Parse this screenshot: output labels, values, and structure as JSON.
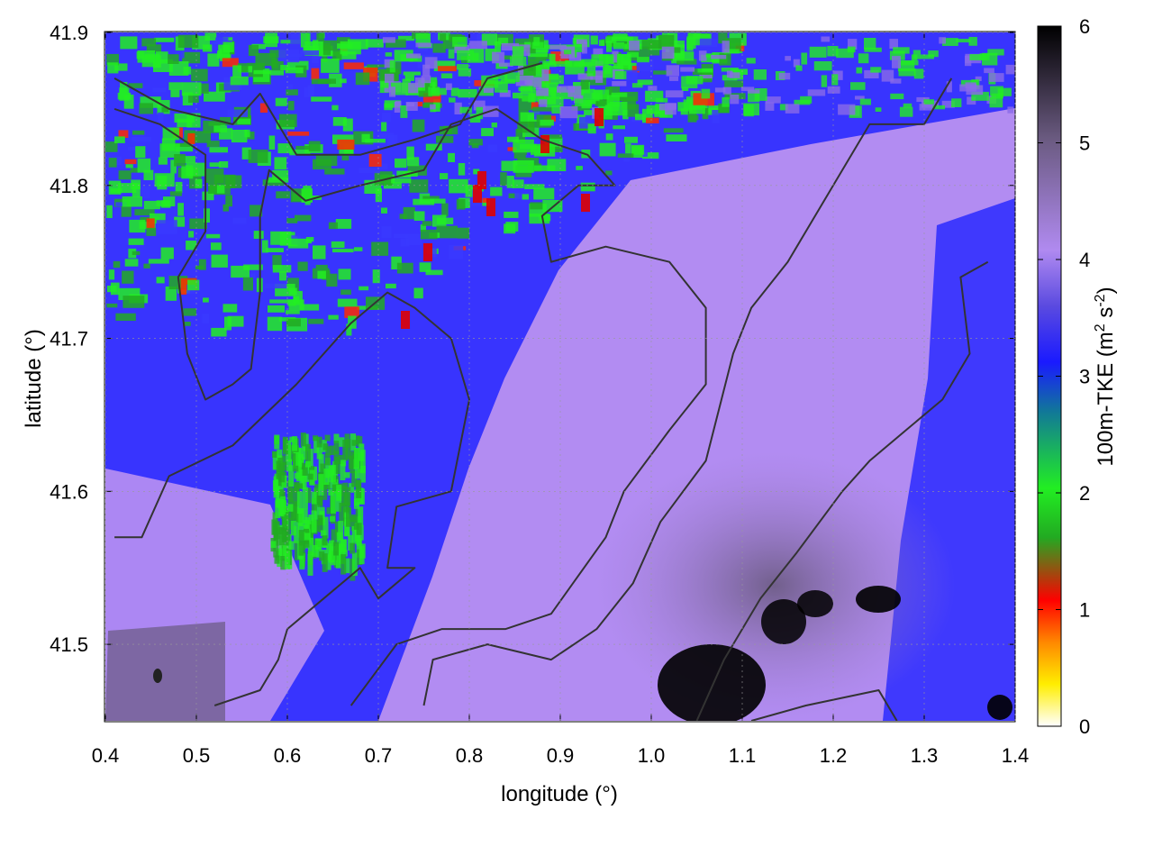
{
  "chart_data": {
    "type": "heatmap",
    "xlabel": "longitude (°)",
    "ylabel": "latitude (°)",
    "xlim": [
      0.4,
      1.4
    ],
    "ylim": [
      41.45,
      41.9
    ],
    "xticks": [
      "0.4",
      "0.5",
      "0.6",
      "0.7",
      "0.8",
      "0.9",
      "1.0",
      "1.1",
      "1.2",
      "1.3",
      "1.4"
    ],
    "yticks": [
      "41.5",
      "41.6",
      "41.7",
      "41.8",
      "41.9"
    ],
    "colorbar": {
      "label_main": "100m-TKE (m",
      "label_sup1": "2",
      "label_mid": " s",
      "label_sup2": "-2",
      "label_end": ")",
      "range": [
        0,
        6
      ],
      "ticks": [
        "0",
        "1",
        "2",
        "3",
        "4",
        "5",
        "6"
      ],
      "colors": [
        "#ffffff",
        "#ffee00",
        "#ff8800",
        "#ff0000",
        "#22bb22",
        "#22ee22",
        "#2255dd",
        "#1a1aff",
        "#7a6ad8",
        "#c48ef0",
        "#6a5a80",
        "#000000"
      ]
    },
    "field_summary": {
      "high_values_0_to_2_green_red": "north-west region, roughly lon 0.45–0.95, lat 41.7–41.9",
      "mid_values_3_blue": "western and edge areas",
      "values_4_violet": "central and eastern plateau",
      "values_5_6_black": "south-east corner near lon 1.0–1.3, lat 41.45–41.58"
    },
    "contours": [
      [
        [
          0.41,
          41.87
        ],
        [
          0.47,
          41.85
        ],
        [
          0.54,
          41.84
        ],
        [
          0.57,
          41.86
        ],
        [
          0.61,
          41.82
        ],
        [
          0.68,
          41.82
        ],
        [
          0.74,
          41.83
        ],
        [
          0.79,
          41.84
        ],
        [
          0.82,
          41.87
        ],
        [
          0.88,
          41.88
        ]
      ],
      [
        [
          0.41,
          41.85
        ],
        [
          0.46,
          41.84
        ],
        [
          0.51,
          41.82
        ],
        [
          0.51,
          41.77
        ],
        [
          0.48,
          41.74
        ],
        [
          0.49,
          41.69
        ],
        [
          0.51,
          41.66
        ],
        [
          0.54,
          41.67
        ],
        [
          0.56,
          41.68
        ],
        [
          0.57,
          41.73
        ],
        [
          0.57,
          41.78
        ],
        [
          0.58,
          41.81
        ],
        [
          0.62,
          41.79
        ],
        [
          0.68,
          41.8
        ],
        [
          0.75,
          41.81
        ],
        [
          0.78,
          41.84
        ],
        [
          0.83,
          41.85
        ],
        [
          0.88,
          41.83
        ],
        [
          0.93,
          41.82
        ],
        [
          0.96,
          41.8
        ],
        [
          0.92,
          41.8
        ],
        [
          0.88,
          41.78
        ],
        [
          0.89,
          41.75
        ],
        [
          0.95,
          41.76
        ],
        [
          1.02,
          41.75
        ],
        [
          1.06,
          41.72
        ],
        [
          1.06,
          41.67
        ],
        [
          1.02,
          41.64
        ],
        [
          0.97,
          41.6
        ],
        [
          0.95,
          41.57
        ],
        [
          0.89,
          41.52
        ],
        [
          0.84,
          41.51
        ],
        [
          0.77,
          41.51
        ],
        [
          0.72,
          41.5
        ],
        [
          0.67,
          41.46
        ]
      ],
      [
        [
          0.41,
          41.57
        ],
        [
          0.44,
          41.57
        ],
        [
          0.47,
          41.61
        ],
        [
          0.54,
          41.63
        ],
        [
          0.61,
          41.67
        ],
        [
          0.67,
          41.71
        ],
        [
          0.71,
          41.73
        ],
        [
          0.74,
          41.72
        ],
        [
          0.78,
          41.7
        ],
        [
          0.8,
          41.66
        ],
        [
          0.78,
          41.6
        ],
        [
          0.72,
          41.59
        ],
        [
          0.71,
          41.55
        ],
        [
          0.74,
          41.55
        ],
        [
          0.7,
          41.53
        ],
        [
          0.68,
          41.55
        ],
        [
          0.64,
          41.53
        ],
        [
          0.6,
          41.51
        ],
        [
          0.59,
          41.49
        ],
        [
          0.57,
          41.47
        ],
        [
          0.52,
          41.46
        ]
      ],
      [
        [
          0.75,
          41.46
        ],
        [
          0.76,
          41.49
        ],
        [
          0.82,
          41.5
        ],
        [
          0.89,
          41.49
        ],
        [
          0.94,
          41.51
        ],
        [
          0.98,
          41.54
        ],
        [
          1.01,
          41.58
        ],
        [
          1.06,
          41.62
        ],
        [
          1.09,
          41.69
        ],
        [
          1.11,
          41.72
        ],
        [
          1.15,
          41.75
        ],
        [
          1.2,
          41.8
        ],
        [
          1.24,
          41.84
        ],
        [
          1.3,
          41.84
        ],
        [
          1.33,
          41.87
        ]
      ],
      [
        [
          1.05,
          41.45
        ],
        [
          1.08,
          41.49
        ],
        [
          1.12,
          41.53
        ],
        [
          1.16,
          41.56
        ],
        [
          1.21,
          41.6
        ],
        [
          1.24,
          41.62
        ],
        [
          1.28,
          41.64
        ],
        [
          1.32,
          41.66
        ],
        [
          1.35,
          41.69
        ],
        [
          1.34,
          41.74
        ],
        [
          1.37,
          41.75
        ]
      ],
      [
        [
          1.11,
          41.45
        ],
        [
          1.17,
          41.46
        ],
        [
          1.25,
          41.47
        ],
        [
          1.27,
          41.45
        ]
      ]
    ]
  }
}
